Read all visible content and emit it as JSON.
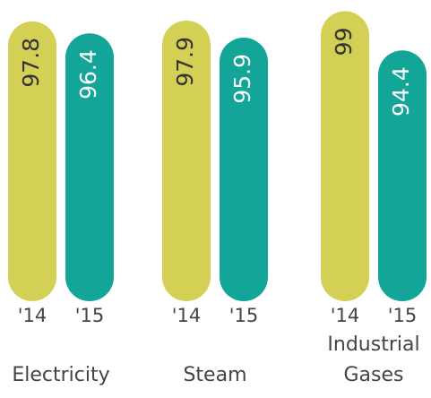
{
  "chart_data": {
    "type": "bar",
    "categories": [
      "Electricity",
      "Steam",
      "Industrial Gases"
    ],
    "series": [
      {
        "name": "'14",
        "color": "#d4cf55",
        "values": [
          97.8,
          97.9,
          99.0
        ]
      },
      {
        "name": "'15",
        "color": "#13a597",
        "values": [
          96.4,
          95.9,
          94.4
        ]
      }
    ],
    "ylim": [
      65,
      100
    ]
  }
}
